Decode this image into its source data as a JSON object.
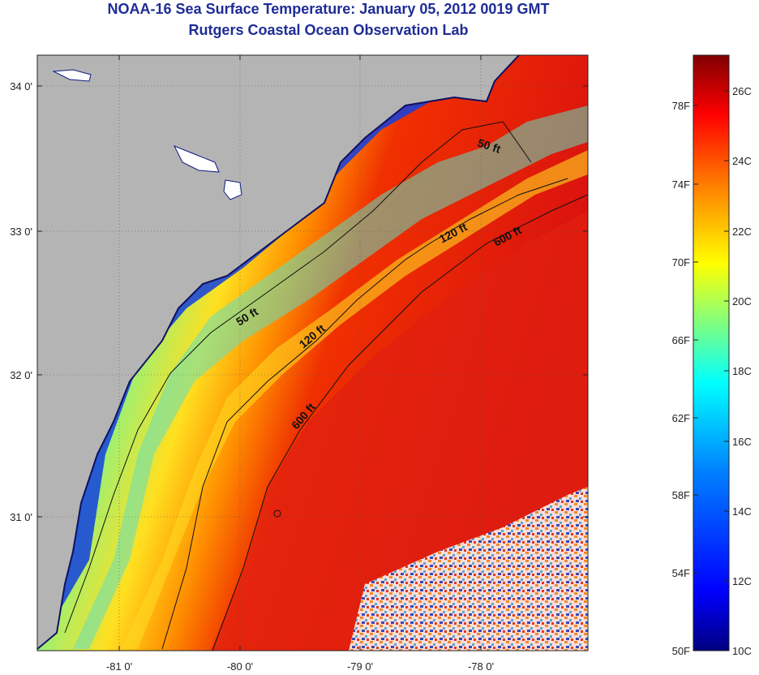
{
  "title": "NOAA-16 Sea Surface Temperature:  January 05, 2012 0019 GMT",
  "subtitle": "Rutgers Coastal Ocean Observation Lab",
  "map": {
    "lon_ticks": [
      "-81 0'",
      "-80 0'",
      "-79 0'",
      "-78 0'"
    ],
    "lat_ticks": [
      "34 0'",
      "33 0'",
      "32 0'",
      "31 0'"
    ],
    "contour_labels": [
      "50 ft",
      "120 ft",
      "600 ft",
      "50 ft",
      "120 ft",
      "600 ft"
    ],
    "colors": {
      "land": "#b4b4b4",
      "coastline": "#111111"
    }
  },
  "colorbar": {
    "fahrenheit_labels": [
      "78F",
      "74F",
      "70F",
      "66F",
      "62F",
      "58F",
      "54F",
      "50F"
    ],
    "celsius_labels": [
      "26C",
      "24C",
      "22C",
      "20C",
      "18C",
      "16C",
      "14C",
      "12C",
      "10C"
    ],
    "colors": [
      "#000080",
      "#0000ff",
      "#0080ff",
      "#00ffff",
      "#80ff80",
      "#ffff00",
      "#ff8000",
      "#ff0000",
      "#800000"
    ]
  }
}
